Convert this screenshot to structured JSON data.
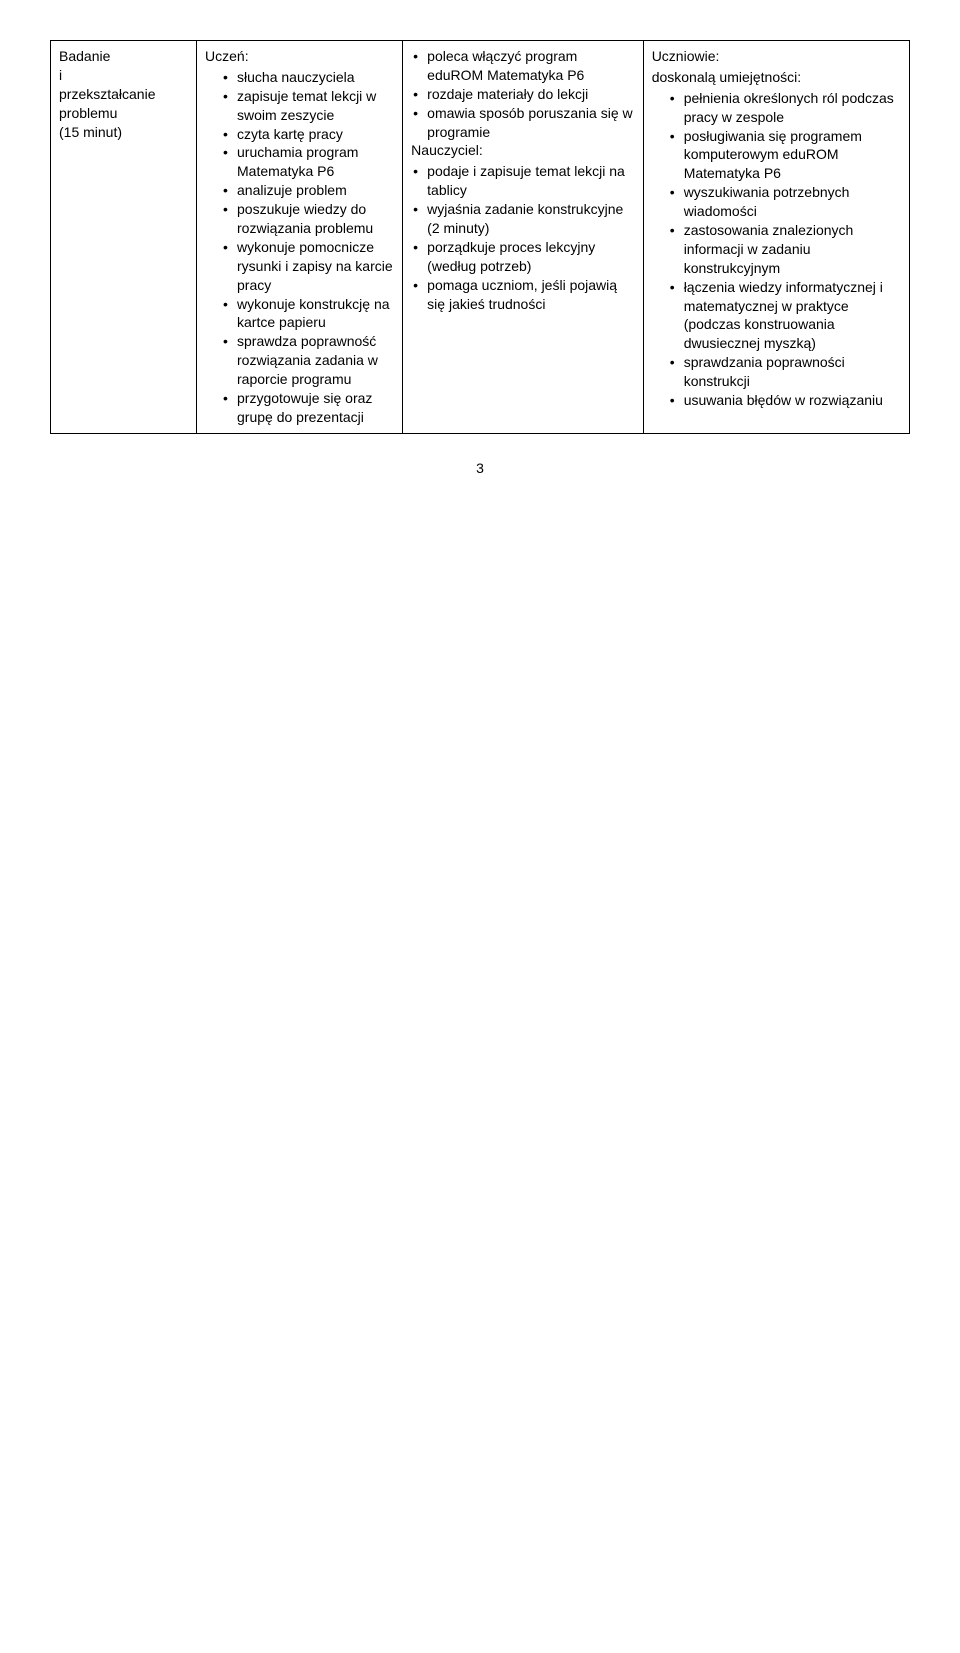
{
  "col0": {
    "lines": [
      "Badanie",
      "i",
      "przekształcanie",
      "problemu",
      "(15 minut)"
    ]
  },
  "col1": {
    "head": "Uczeń:",
    "items": [
      "słucha nauczyciela",
      "zapisuje temat lekcji w swoim zeszycie",
      "czyta kartę pracy",
      "uruchamia program Matematyka P6",
      "analizuje problem",
      "poszukuje wiedzy do rozwiązania problemu",
      "wykonuje pomocnicze rysunki i zapisy na karcie pracy",
      "wykonuje konstrukcję na kartce papieru",
      "sprawdza poprawność rozwiązania zadania w raporcie programu",
      "przygotowuje się oraz grupę do prezentacji"
    ]
  },
  "col2": {
    "pre": [
      "poleca włączyć program eduROM Matematyka P6",
      "rozdaje materiały do lekcji",
      "omawia sposób poruszania się w programie"
    ],
    "head": "Nauczyciel:",
    "items": [
      "podaje i zapisuje temat lekcji na tablicy",
      "wyjaśnia zadanie konstrukcyjne (2 minuty)",
      "porządkuje proces lekcyjny (według potrzeb)",
      "pomaga uczniom, jeśli pojawią się jakieś trudności"
    ]
  },
  "col3": {
    "head1": "Uczniowie:",
    "head2": "doskonalą umiejętności:",
    "items": [
      "pełnienia określonych ról podczas pracy w zespole",
      "posługiwania się programem komputerowym eduROM Matematyka P6",
      "wyszukiwania potrzebnych wiadomości",
      "zastosowania znalezionych informacji w zadaniu konstrukcyjnym",
      "łączenia wiedzy informatycznej i matematycznej w praktyce (podczas konstruowania dwusiecznej myszką)",
      "sprawdzania poprawności konstrukcji",
      "usuwania błędów w rozwiązaniu"
    ]
  },
  "pageNumber": "3"
}
